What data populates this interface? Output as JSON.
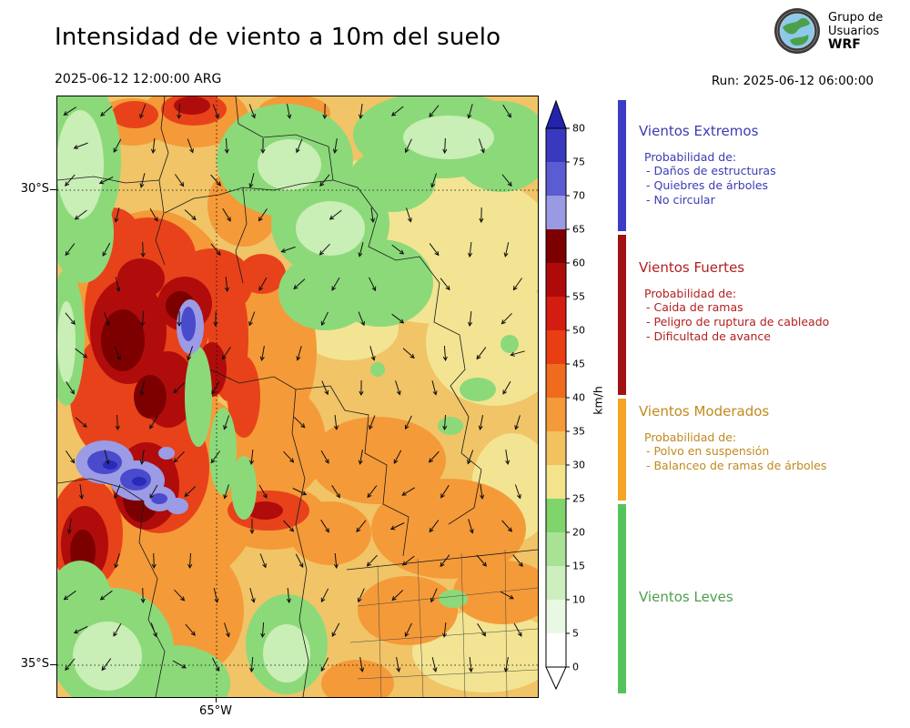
{
  "header": {
    "title": "Intensidad de viento a 10m del suelo",
    "valid_datetime": "2025-06-12 12:00:00 ARG",
    "run_label": "Run: 2025-06-12 06:00:00",
    "logo_lines": [
      "Grupo de",
      "Usuarios",
      "WRF"
    ]
  },
  "map_axes": {
    "lat_labels": [
      "30°S",
      "35°S"
    ],
    "lon_labels": [
      "65°W"
    ]
  },
  "colorbar": {
    "unit": "km/h",
    "tick_values": [
      0,
      5,
      10,
      15,
      20,
      25,
      30,
      35,
      40,
      45,
      50,
      55,
      60,
      65,
      70,
      75,
      80
    ],
    "segment_colors_bottom_to_top": [
      "#ffffff",
      "#e9f8e3",
      "#cdeebd",
      "#a9e295",
      "#7fd46c",
      "#f2e38c",
      "#f2c25e",
      "#f59a38",
      "#ef6c1e",
      "#e93d14",
      "#d41d10",
      "#af0a0a",
      "#7d0000",
      "#9a9ae4",
      "#5b5bd2",
      "#3939c0"
    ],
    "over_color": "#2323ae",
    "under_color": "#ffffff"
  },
  "legend": {
    "sections": [
      {
        "heading": "Vientos Extremos",
        "color": "#3b3bb4",
        "strip_color": "#3b3bc4",
        "prob_label": "Probabilidad de:",
        "items": [
          "- Daños de estructuras",
          "- Quiebres de árboles",
          "- No circular"
        ]
      },
      {
        "heading": "Vientos Fuertes",
        "color": "#b22020",
        "strip_color": "#a01212",
        "prob_label": "Probabilidad de:",
        "items": [
          "- Caida de ramas",
          "- Peligro de ruptura de cableado",
          "- Dificultad de avance"
        ]
      },
      {
        "heading": "Vientos Moderados",
        "color": "#c08a1e",
        "strip_color": "#f5a423",
        "prob_label": "Probabilidad de:",
        "items": [
          "- Polvo en suspensión",
          "- Balanceo de ramas de árboles"
        ]
      },
      {
        "heading": "Vientos Leves",
        "color": "#4d9e4d",
        "strip_color": "#55c35c",
        "prob_label": "",
        "items": []
      }
    ]
  }
}
